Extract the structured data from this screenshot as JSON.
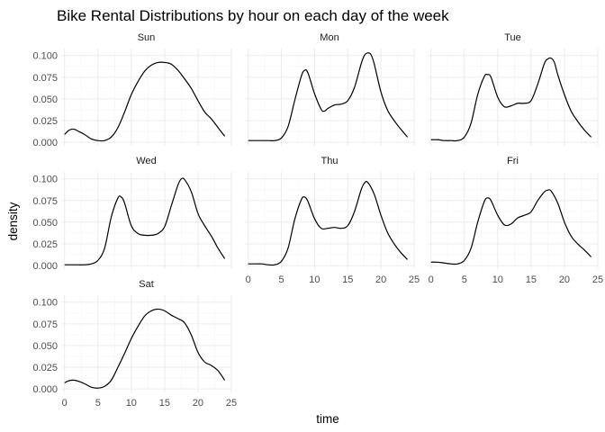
{
  "chart_data": {
    "type": "line",
    "title": "Bike Rental Distributions by hour on each day of the week",
    "xlabel": "time",
    "ylabel": "density",
    "xlim": [
      -0.5,
      25
    ],
    "ylim": [
      -0.004,
      0.108
    ],
    "x_ticks": [
      0,
      5,
      10,
      15,
      20,
      25
    ],
    "y_ticks": [
      0.0,
      0.025,
      0.05,
      0.075,
      0.1
    ],
    "x_tick_labels": [
      "0",
      "5",
      "10",
      "15",
      "20",
      "25"
    ],
    "y_tick_labels": [
      "0.000",
      "0.025",
      "0.050",
      "0.075",
      "0.100"
    ],
    "grid": true,
    "facets": [
      {
        "name": "Sun",
        "points": [
          [
            0,
            0.009
          ],
          [
            0.5,
            0.013
          ],
          [
            1,
            0.015
          ],
          [
            1.5,
            0.015
          ],
          [
            2,
            0.013
          ],
          [
            3,
            0.009
          ],
          [
            4,
            0.004
          ],
          [
            5,
            0.002
          ],
          [
            6,
            0.002
          ],
          [
            7,
            0.006
          ],
          [
            8,
            0.017
          ],
          [
            9,
            0.035
          ],
          [
            10,
            0.055
          ],
          [
            11,
            0.07
          ],
          [
            12,
            0.082
          ],
          [
            13,
            0.089
          ],
          [
            14,
            0.092
          ],
          [
            15,
            0.092
          ],
          [
            16,
            0.09
          ],
          [
            17,
            0.083
          ],
          [
            18,
            0.073
          ],
          [
            19,
            0.062
          ],
          [
            20,
            0.048
          ],
          [
            21,
            0.035
          ],
          [
            22,
            0.027
          ],
          [
            23,
            0.017
          ],
          [
            24,
            0.007
          ]
        ]
      },
      {
        "name": "Mon",
        "points": [
          [
            0,
            0.002
          ],
          [
            1,
            0.002
          ],
          [
            2,
            0.002
          ],
          [
            3,
            0.002
          ],
          [
            4,
            0.002
          ],
          [
            5,
            0.005
          ],
          [
            6,
            0.018
          ],
          [
            7,
            0.048
          ],
          [
            8,
            0.076
          ],
          [
            8.5,
            0.083
          ],
          [
            9,
            0.08
          ],
          [
            10,
            0.056
          ],
          [
            11,
            0.038
          ],
          [
            11.5,
            0.036
          ],
          [
            12,
            0.039
          ],
          [
            13,
            0.043
          ],
          [
            14,
            0.044
          ],
          [
            15,
            0.048
          ],
          [
            16,
            0.063
          ],
          [
            17,
            0.09
          ],
          [
            17.5,
            0.1
          ],
          [
            18,
            0.103
          ],
          [
            18.5,
            0.101
          ],
          [
            19,
            0.09
          ],
          [
            20,
            0.058
          ],
          [
            21,
            0.037
          ],
          [
            22,
            0.025
          ],
          [
            23,
            0.015
          ],
          [
            24,
            0.006
          ]
        ]
      },
      {
        "name": "Tue",
        "points": [
          [
            0,
            0.003
          ],
          [
            1,
            0.003
          ],
          [
            2,
            0.002
          ],
          [
            3,
            0.002
          ],
          [
            4,
            0.002
          ],
          [
            5,
            0.006
          ],
          [
            6,
            0.022
          ],
          [
            7,
            0.055
          ],
          [
            8,
            0.076
          ],
          [
            8.5,
            0.078
          ],
          [
            9,
            0.075
          ],
          [
            10,
            0.052
          ],
          [
            11,
            0.041
          ],
          [
            12,
            0.042
          ],
          [
            13,
            0.045
          ],
          [
            14,
            0.045
          ],
          [
            15,
            0.048
          ],
          [
            16,
            0.067
          ],
          [
            17,
            0.091
          ],
          [
            17.5,
            0.096
          ],
          [
            18,
            0.097
          ],
          [
            18.5,
            0.092
          ],
          [
            19,
            0.078
          ],
          [
            20,
            0.055
          ],
          [
            21,
            0.036
          ],
          [
            22,
            0.024
          ],
          [
            23,
            0.014
          ],
          [
            24,
            0.006
          ]
        ]
      },
      {
        "name": "Wed",
        "points": [
          [
            0,
            0.001
          ],
          [
            1,
            0.001
          ],
          [
            2,
            0.001
          ],
          [
            3,
            0.001
          ],
          [
            4,
            0.002
          ],
          [
            5,
            0.006
          ],
          [
            6,
            0.02
          ],
          [
            7,
            0.056
          ],
          [
            8,
            0.078
          ],
          [
            8.5,
            0.079
          ],
          [
            9,
            0.072
          ],
          [
            10,
            0.046
          ],
          [
            11,
            0.037
          ],
          [
            12,
            0.035
          ],
          [
            13,
            0.035
          ],
          [
            14,
            0.037
          ],
          [
            15,
            0.045
          ],
          [
            16,
            0.069
          ],
          [
            17,
            0.093
          ],
          [
            17.5,
            0.1
          ],
          [
            18,
            0.099
          ],
          [
            19,
            0.085
          ],
          [
            20,
            0.06
          ],
          [
            21,
            0.046
          ],
          [
            22,
            0.034
          ],
          [
            23,
            0.02
          ],
          [
            24,
            0.008
          ]
        ]
      },
      {
        "name": "Thu",
        "points": [
          [
            0,
            0.002
          ],
          [
            1,
            0.002
          ],
          [
            2,
            0.002
          ],
          [
            3,
            0.001
          ],
          [
            4,
            0.001
          ],
          [
            5,
            0.005
          ],
          [
            6,
            0.02
          ],
          [
            7,
            0.053
          ],
          [
            8,
            0.076
          ],
          [
            8.5,
            0.079
          ],
          [
            9,
            0.074
          ],
          [
            10,
            0.054
          ],
          [
            11,
            0.043
          ],
          [
            12,
            0.043
          ],
          [
            13,
            0.044
          ],
          [
            14,
            0.043
          ],
          [
            15,
            0.046
          ],
          [
            16,
            0.062
          ],
          [
            17,
            0.087
          ],
          [
            17.5,
            0.095
          ],
          [
            18,
            0.096
          ],
          [
            19,
            0.082
          ],
          [
            20,
            0.058
          ],
          [
            21,
            0.038
          ],
          [
            22,
            0.025
          ],
          [
            23,
            0.015
          ],
          [
            24,
            0.007
          ]
        ]
      },
      {
        "name": "Fri",
        "points": [
          [
            0,
            0.004
          ],
          [
            1,
            0.004
          ],
          [
            2,
            0.003
          ],
          [
            3,
            0.002
          ],
          [
            4,
            0.002
          ],
          [
            5,
            0.006
          ],
          [
            6,
            0.02
          ],
          [
            7,
            0.05
          ],
          [
            8,
            0.074
          ],
          [
            8.5,
            0.078
          ],
          [
            9,
            0.075
          ],
          [
            10,
            0.058
          ],
          [
            11,
            0.047
          ],
          [
            12,
            0.048
          ],
          [
            13,
            0.055
          ],
          [
            14,
            0.058
          ],
          [
            15,
            0.062
          ],
          [
            16,
            0.075
          ],
          [
            17,
            0.085
          ],
          [
            17.5,
            0.087
          ],
          [
            18,
            0.086
          ],
          [
            19,
            0.072
          ],
          [
            20,
            0.05
          ],
          [
            21,
            0.034
          ],
          [
            22,
            0.025
          ],
          [
            23,
            0.018
          ],
          [
            24,
            0.01
          ]
        ]
      },
      {
        "name": "Sat",
        "points": [
          [
            0,
            0.007
          ],
          [
            0.5,
            0.009
          ],
          [
            1,
            0.01
          ],
          [
            1.5,
            0.01
          ],
          [
            2,
            0.009
          ],
          [
            3,
            0.006
          ],
          [
            4,
            0.002
          ],
          [
            5,
            0.001
          ],
          [
            6,
            0.003
          ],
          [
            7,
            0.01
          ],
          [
            8,
            0.025
          ],
          [
            9,
            0.041
          ],
          [
            10,
            0.058
          ],
          [
            11,
            0.072
          ],
          [
            12,
            0.084
          ],
          [
            13,
            0.09
          ],
          [
            14,
            0.092
          ],
          [
            15,
            0.09
          ],
          [
            16,
            0.085
          ],
          [
            17,
            0.081
          ],
          [
            18,
            0.076
          ],
          [
            19,
            0.062
          ],
          [
            20,
            0.042
          ],
          [
            21,
            0.031
          ],
          [
            22,
            0.027
          ],
          [
            23,
            0.021
          ],
          [
            24,
            0.01
          ]
        ]
      }
    ]
  }
}
